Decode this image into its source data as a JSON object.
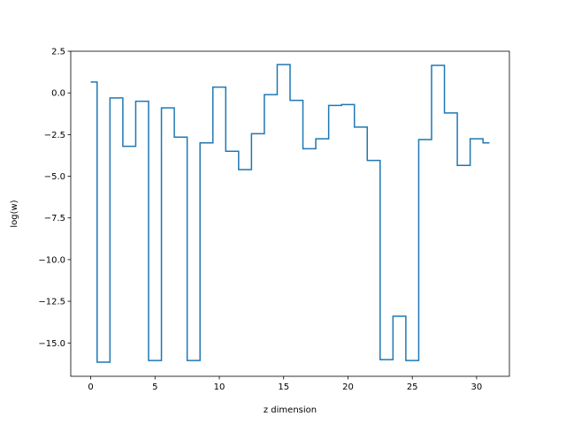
{
  "chart_data": {
    "type": "line",
    "drawstyle": "steps-mid",
    "xlabel": "z dimension",
    "ylabel": "log(w)",
    "xlim": [
      -1.55,
      32.55
    ],
    "ylim": [
      -17.0,
      2.5
    ],
    "xticks": [
      0,
      5,
      10,
      15,
      20,
      25,
      30
    ],
    "xtick_labels": [
      "0",
      "5",
      "10",
      "15",
      "20",
      "25",
      "30"
    ],
    "yticks": [
      2.5,
      0.0,
      -2.5,
      -5.0,
      -7.5,
      -10.0,
      -12.5,
      -15.0
    ],
    "ytick_labels": [
      "2.5",
      "0.0",
      "−2.5",
      "−5.0",
      "−7.5",
      "−10.0",
      "−12.5",
      "−15.0"
    ],
    "grid": false,
    "line_color": "#1f77b4",
    "series": [
      {
        "x": [
          0,
          1,
          2,
          3,
          4,
          5,
          6,
          7,
          8,
          9,
          10,
          11,
          12,
          13,
          14,
          15,
          16,
          17,
          18,
          19,
          20,
          21,
          22,
          23,
          24,
          25,
          26,
          27,
          28,
          29,
          30,
          31
        ],
        "values": [
          0.65,
          -16.15,
          -0.3,
          -3.2,
          -0.5,
          -16.05,
          -0.9,
          -2.65,
          -16.05,
          -3.0,
          0.35,
          -3.5,
          -4.6,
          -2.45,
          -0.1,
          1.7,
          -0.45,
          -3.35,
          -2.75,
          -0.75,
          -0.7,
          -2.05,
          -4.05,
          -16.0,
          -13.4,
          -16.05,
          -2.8,
          1.65,
          -1.2,
          -4.35,
          -2.75,
          -3.0
        ]
      }
    ]
  }
}
